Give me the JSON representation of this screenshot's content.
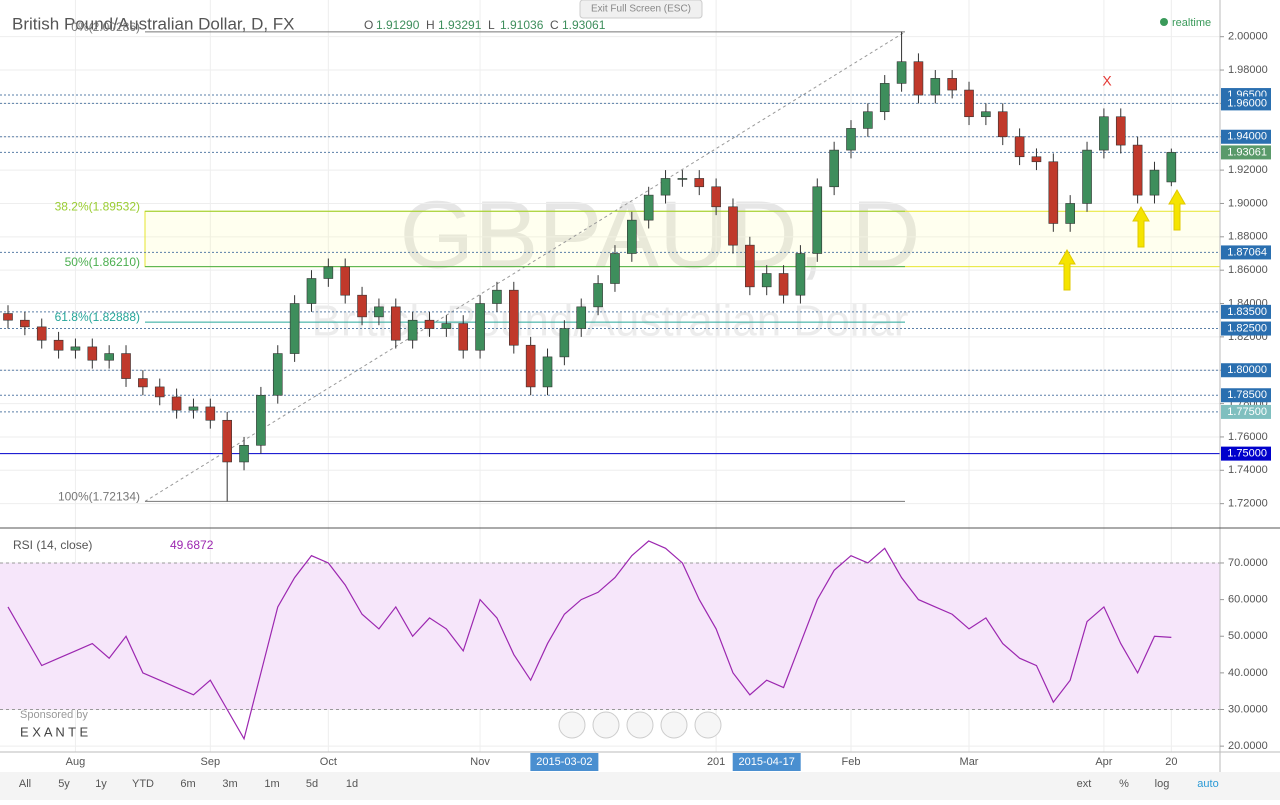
{
  "header": {
    "title": "British Pound/Australian Dollar, D, FX",
    "ohlc": [
      {
        "key": "O",
        "value": "1.91290"
      },
      {
        "key": "H",
        "value": "1.93291"
      },
      {
        "key": "L",
        "value": "1.91036"
      },
      {
        "key": "C",
        "value": "1.93061"
      }
    ],
    "status": "realtime",
    "exit_fullscreen": "Exit Full Screen (ESC)",
    "watermark": "GBPAUD, D",
    "watermark_sub": "British Pound/Australian Dollar",
    "annotation": "X"
  },
  "chart_data": [
    {
      "type": "candlestick",
      "categories": [
        null,
        null,
        null,
        null,
        "Aug",
        null,
        null,
        null,
        null,
        null,
        null,
        null,
        "Sep",
        null,
        null,
        null,
        null,
        null,
        null,
        "Oct",
        null,
        null,
        null,
        null,
        null,
        null,
        null,
        null,
        "Nov",
        null,
        null,
        null,
        null,
        "2015-03-02",
        null,
        null,
        null,
        null,
        null,
        null,
        null,
        null,
        "201",
        null,
        null,
        "2015-04-17",
        null,
        null,
        null,
        null,
        "Feb",
        null,
        null,
        null,
        null,
        null,
        null,
        "Mar",
        null,
        null,
        null,
        null,
        null,
        null,
        null,
        "Apr",
        null,
        null,
        null,
        "20"
      ],
      "opens": [
        1.834,
        1.83,
        1.826,
        1.818,
        1.812,
        1.814,
        1.806,
        1.81,
        1.795,
        1.79,
        1.784,
        1.776,
        1.778,
        1.77,
        1.745,
        1.755,
        1.785,
        1.81,
        1.84,
        1.855,
        1.862,
        1.845,
        1.832,
        1.838,
        1.818,
        1.83,
        1.825,
        1.828,
        1.812,
        1.84,
        1.848,
        1.815,
        1.79,
        1.808,
        1.825,
        1.838,
        1.852,
        1.87,
        1.89,
        1.905,
        1.915,
        1.915,
        1.91,
        1.898,
        1.875,
        1.85,
        1.858,
        1.845,
        1.87,
        1.91,
        1.932,
        1.945,
        1.955,
        1.972,
        1.985,
        1.965,
        1.975,
        1.968,
        1.952,
        1.955,
        1.94,
        1.928,
        1.925,
        1.888,
        1.9,
        1.932,
        1.952,
        1.935,
        1.905,
        1.9129
      ],
      "highs": [
        1.839,
        1.835,
        1.831,
        1.823,
        1.819,
        1.819,
        1.815,
        1.815,
        1.8,
        1.795,
        1.789,
        1.783,
        1.783,
        1.775,
        1.76,
        1.79,
        1.815,
        1.845,
        1.86,
        1.867,
        1.867,
        1.85,
        1.843,
        1.843,
        1.835,
        1.835,
        1.833,
        1.833,
        1.845,
        1.853,
        1.853,
        1.82,
        1.813,
        1.83,
        1.843,
        1.857,
        1.875,
        1.895,
        1.91,
        1.92,
        1.92,
        1.92,
        1.915,
        1.903,
        1.88,
        1.863,
        1.863,
        1.875,
        1.915,
        1.937,
        1.95,
        1.96,
        1.977,
        2.003,
        1.99,
        1.98,
        1.98,
        1.973,
        1.96,
        1.96,
        1.945,
        1.933,
        1.93,
        1.905,
        1.937,
        1.957,
        1.957,
        1.94,
        1.925,
        1.93291
      ],
      "lows": [
        1.825,
        1.821,
        1.813,
        1.807,
        1.807,
        1.801,
        1.801,
        1.79,
        1.785,
        1.779,
        1.771,
        1.771,
        1.765,
        1.7213,
        1.74,
        1.75,
        1.78,
        1.805,
        1.835,
        1.85,
        1.84,
        1.827,
        1.827,
        1.813,
        1.813,
        1.82,
        1.82,
        1.807,
        1.807,
        1.835,
        1.81,
        1.785,
        1.785,
        1.803,
        1.82,
        1.833,
        1.847,
        1.865,
        1.885,
        1.9,
        1.91,
        1.905,
        1.893,
        1.87,
        1.845,
        1.845,
        1.84,
        1.84,
        1.865,
        1.905,
        1.927,
        1.94,
        1.95,
        1.967,
        1.96,
        1.96,
        1.963,
        1.947,
        1.947,
        1.935,
        1.923,
        1.92,
        1.883,
        1.883,
        1.895,
        1.927,
        1.93,
        1.9,
        1.9,
        1.91036
      ],
      "closes": [
        1.83,
        1.826,
        1.818,
        1.812,
        1.814,
        1.806,
        1.81,
        1.795,
        1.79,
        1.784,
        1.776,
        1.778,
        1.77,
        1.745,
        1.755,
        1.785,
        1.81,
        1.84,
        1.855,
        1.862,
        1.845,
        1.832,
        1.838,
        1.818,
        1.83,
        1.825,
        1.828,
        1.812,
        1.84,
        1.848,
        1.815,
        1.79,
        1.808,
        1.825,
        1.838,
        1.852,
        1.87,
        1.89,
        1.905,
        1.915,
        1.915,
        1.91,
        1.898,
        1.875,
        1.85,
        1.858,
        1.845,
        1.87,
        1.91,
        1.932,
        1.945,
        1.955,
        1.972,
        1.985,
        1.965,
        1.975,
        1.968,
        1.952,
        1.955,
        1.94,
        1.928,
        1.925,
        1.888,
        1.9,
        1.932,
        1.952,
        1.935,
        1.905,
        1.92,
        1.93061
      ],
      "up_color": "#3e8e5c",
      "down_color": "#c0392b",
      "ylim": [
        1.706,
        2.019
      ],
      "yticks": [
        {
          "value": 1.72,
          "label": "1.72000"
        },
        {
          "value": 1.74,
          "label": "1.74000"
        },
        {
          "value": 1.76,
          "label": "1.76000"
        },
        {
          "value": 1.78,
          "label": "1.78000"
        },
        {
          "value": 1.8,
          "label": "1.80000"
        },
        {
          "value": 1.82,
          "label": "1.82000"
        },
        {
          "value": 1.84,
          "label": "1.84000"
        },
        {
          "value": 1.86,
          "label": "1.86000"
        },
        {
          "value": 1.88,
          "label": "1.88000"
        },
        {
          "value": 1.9,
          "label": "1.90000"
        },
        {
          "value": 1.92,
          "label": "1.92000"
        },
        {
          "value": 1.94,
          "label": "1.94000"
        },
        {
          "value": 1.96,
          "label": "1.96000"
        },
        {
          "value": 1.98,
          "label": "1.98000"
        },
        {
          "value": 2.0,
          "label": "2.00000"
        }
      ],
      "levels": [
        {
          "value": 1.965,
          "label": "1.96500",
          "color": "#2a6fb0"
        },
        {
          "value": 1.96,
          "label": "1.96000",
          "color": "#2a6fb0"
        },
        {
          "value": 1.94,
          "label": "1.94000",
          "color": "#2a6fb0"
        },
        {
          "value": 1.93061,
          "label": "1.93061",
          "color": "#5a9a6a"
        },
        {
          "value": 1.87064,
          "label": "1.87064",
          "color": "#2a6fb0"
        },
        {
          "value": 1.835,
          "label": "1.83500",
          "color": "#2a6fb0"
        },
        {
          "value": 1.825,
          "label": "1.82500",
          "color": "#2a6fb0"
        },
        {
          "value": 1.8,
          "label": "1.80000",
          "color": "#2a6fb0"
        },
        {
          "value": 1.785,
          "label": "1.78500",
          "color": "#2a6fb0"
        },
        {
          "value": 1.775,
          "label": "1.77500",
          "color": "#7fbfbf"
        },
        {
          "value": 1.75,
          "label": "1.75000",
          "color": "#0000cc"
        }
      ],
      "fib": [
        {
          "value": 2.00286,
          "label": "0%(2.00286)",
          "color": "#777777"
        },
        {
          "value": 1.89532,
          "label": "38.2%(1.89532)",
          "color": "#9acd32"
        },
        {
          "value": 1.8621,
          "label": "50%(1.86210)",
          "color": "#4caf50"
        },
        {
          "value": 1.82888,
          "label": "61.8%(1.82888)",
          "color": "#26a69a"
        },
        {
          "value": 1.72134,
          "label": "100%(1.72134)",
          "color": "#777777"
        }
      ],
      "grid": true
    },
    {
      "type": "line",
      "title": "RSI (14, close)",
      "color": "#9c27b0",
      "values": [
        58,
        50,
        42,
        44,
        46,
        48,
        44,
        50,
        40,
        38,
        36,
        34,
        38,
        30,
        22,
        40,
        58,
        66,
        72,
        70,
        64,
        56,
        52,
        58,
        50,
        55,
        52,
        46,
        60,
        55,
        45,
        38,
        48,
        56,
        60,
        62,
        66,
        72,
        76,
        74,
        70,
        60,
        52,
        40,
        34,
        38,
        36,
        48,
        60,
        68,
        72,
        70,
        74,
        66,
        60,
        58,
        56,
        52,
        55,
        48,
        44,
        42,
        32,
        38,
        54,
        58,
        48,
        40,
        50,
        49.6872
      ],
      "ylim": [
        18.4,
        79
      ],
      "yticks": [
        {
          "value": 20,
          "label": "20.0000"
        },
        {
          "value": 30,
          "label": "30.0000"
        },
        {
          "value": 40,
          "label": "40.0000"
        },
        {
          "value": 50,
          "label": "50.0000"
        },
        {
          "value": 60,
          "label": "60.0000"
        },
        {
          "value": 70,
          "label": "70.0000"
        }
      ],
      "band": [
        30,
        70
      ],
      "band_color": "#f6e6fa"
    }
  ],
  "sponsor": {
    "label": "Sponsored by",
    "name": "E X A N T E"
  },
  "toolbar": {
    "ranges": [
      "All",
      "5y",
      "1y",
      "YTD",
      "6m",
      "3m",
      "1m",
      "5d",
      "1d"
    ],
    "options": [
      "ext",
      "%",
      "log",
      "auto"
    ]
  }
}
